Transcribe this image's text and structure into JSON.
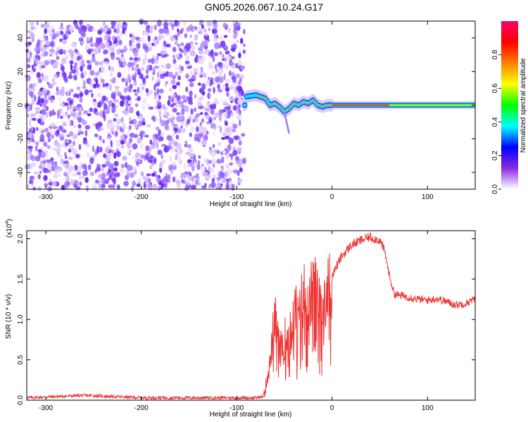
{
  "title": "GN05.2026.067.10.24.G17",
  "chart_data": [
    {
      "type": "heatmap",
      "xlabel": "Height of straight line (km)",
      "ylabel": "Frequency (Hz)",
      "xlim": [
        -320,
        150
      ],
      "ylim": [
        -50,
        50
      ],
      "xticks": [
        -300,
        -200,
        -100,
        0,
        100
      ],
      "yticks": [
        -40,
        -20,
        0,
        20,
        40
      ],
      "colorbar": {
        "label": "Normalized spectral amplitude",
        "range": [
          0,
          1
        ],
        "ticks": [
          "0.0",
          "0.2",
          "0.4",
          "0.6",
          "0.8"
        ],
        "tick_values": [
          0.0,
          0.2,
          0.4,
          0.6,
          0.8
        ],
        "colormap": [
          "#ffffff",
          "#8a2be2",
          "#0000ff",
          "#00ffff",
          "#00ff00",
          "#ffff00",
          "#ff8000",
          "#ff0000",
          "#ff0066"
        ]
      },
      "regions": [
        {
          "x_range": [
            -320,
            -92
          ],
          "description_level": 0.15,
          "noise_freq_range": [
            -50,
            50
          ]
        },
        {
          "x_range": [
            -92,
            0
          ],
          "trace_freq_points": [
            [
              -90,
              5
            ],
            [
              -80,
              6
            ],
            [
              -70,
              4
            ],
            [
              -65,
              0
            ],
            [
              -60,
              1
            ],
            [
              -55,
              -1
            ],
            [
              -50,
              -4
            ],
            [
              -45,
              -2
            ],
            [
              -40,
              1
            ],
            [
              -35,
              0
            ],
            [
              -30,
              2
            ],
            [
              -25,
              1
            ],
            [
              -20,
              3
            ],
            [
              -15,
              0
            ],
            [
              -10,
              -1
            ],
            [
              -5,
              0
            ],
            [
              0,
              0
            ]
          ],
          "tail_x": -45,
          "tail_freq": -17
        },
        {
          "x_range": [
            0,
            150
          ],
          "steady_freq": 0
        }
      ]
    },
    {
      "type": "line",
      "xlabel": "Height of straight line (km)",
      "ylabel": "SNR (10 * v/v)",
      "y_multiplier_label": "(x10",
      "y_multiplier_exp": "4",
      "xlim": [
        -320,
        150
      ],
      "ylim": [
        0,
        2.1
      ],
      "xticks": [
        -300,
        -200,
        -100,
        0,
        100
      ],
      "yticks": [
        "0.0",
        "0.5",
        "1.0",
        "1.5",
        "2.0"
      ],
      "ytick_values": [
        0.0,
        0.5,
        1.0,
        1.5,
        2.0
      ],
      "color": "#ee3333",
      "x": [
        -320,
        -260,
        -200,
        -150,
        -100,
        -80,
        -72,
        -65,
        -60,
        -55,
        -50,
        -45,
        -40,
        -35,
        -30,
        -25,
        -20,
        -15,
        -10,
        -5,
        0,
        10,
        20,
        30,
        40,
        50,
        55,
        60,
        65,
        70,
        80,
        90,
        100,
        110,
        120,
        130,
        140,
        150
      ],
      "y": [
        0.03,
        0.06,
        0.03,
        0.03,
        0.03,
        0.03,
        0.05,
        0.45,
        1.05,
        0.6,
        0.75,
        0.9,
        1.2,
        0.95,
        1.35,
        1.1,
        1.4,
        1.25,
        1.35,
        1.3,
        1.55,
        1.78,
        1.92,
        1.98,
        2.02,
        1.98,
        1.85,
        1.55,
        1.32,
        1.3,
        1.28,
        1.25,
        1.24,
        1.26,
        1.22,
        1.18,
        1.2,
        1.25
      ]
    }
  ]
}
